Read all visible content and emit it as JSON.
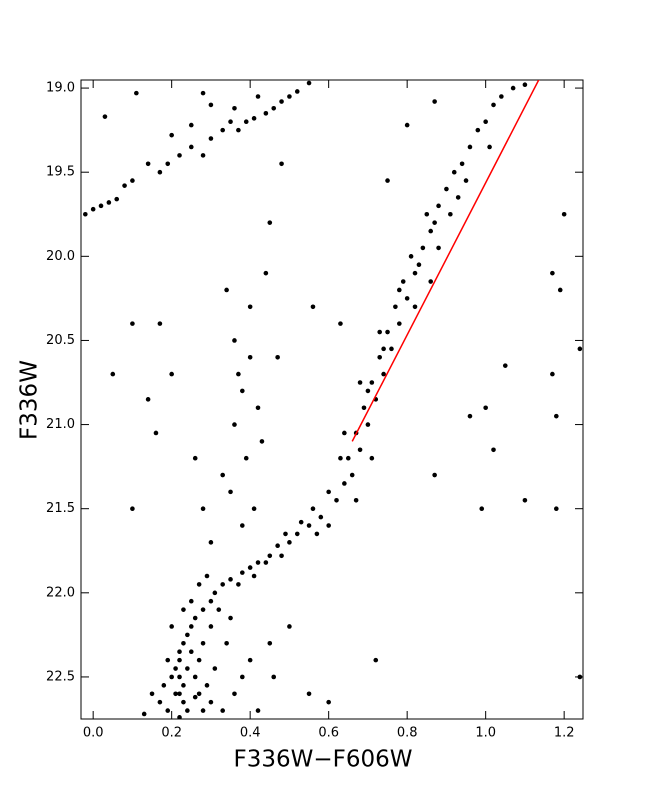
{
  "chart_data": {
    "type": "scatter",
    "x_label": "F336W−F606W",
    "y_label": "F336W",
    "xlim": [
      -0.031,
      1.248
    ],
    "ylim": [
      18.952,
      22.75
    ],
    "y_inverted": true,
    "xticks": [
      {
        "value": 0,
        "label": "0.0"
      },
      0.2,
      0.4,
      0.6,
      0.8,
      {
        "value": 1,
        "label": "1.0"
      },
      1.2
    ],
    "yticks": [
      {
        "value": 19,
        "label": "19.0"
      },
      19.5,
      {
        "value": 20,
        "label": "20.0"
      },
      20.5,
      {
        "value": 21,
        "label": "21.0"
      },
      21.5,
      {
        "value": 22,
        "label": "22.0"
      },
      22.5
    ],
    "series": [
      {
        "type": "scatter",
        "color": "#000000",
        "x": [
          -0.02,
          0.0,
          0.02,
          0.04,
          0.06,
          0.08,
          0.1,
          0.14,
          0.17,
          0.19,
          0.22,
          0.25,
          0.28,
          0.3,
          0.33,
          0.35,
          0.37,
          0.39,
          0.41,
          0.44,
          0.46,
          0.48,
          0.5,
          0.52,
          0.55,
          0.36,
          0.42,
          0.3,
          0.25,
          0.2,
          0.11,
          0.03,
          0.28,
          0.62,
          0.64,
          0.66,
          0.65,
          0.68,
          0.67,
          0.7,
          0.69,
          0.72,
          0.71,
          0.74,
          0.73,
          0.76,
          0.75,
          0.78,
          0.77,
          0.8,
          0.79,
          0.82,
          0.81,
          0.84,
          0.86,
          0.85,
          0.88,
          0.9,
          0.92,
          0.94,
          0.96,
          0.98,
          1.0,
          1.02,
          1.04,
          1.07,
          1.1,
          0.7,
          0.74,
          0.78,
          0.83,
          0.87,
          0.63,
          0.6,
          0.67,
          0.71,
          0.64,
          0.68,
          0.73,
          0.88,
          0.91,
          0.95,
          0.93,
          1.01,
          0.82,
          0.86,
          0.58,
          0.55,
          0.52,
          0.5,
          0.47,
          0.45,
          0.42,
          0.4,
          0.38,
          0.35,
          0.33,
          0.56,
          0.53,
          0.49,
          0.44,
          0.41,
          0.37,
          0.31,
          0.6,
          0.57,
          0.48,
          0.3,
          0.28,
          0.26,
          0.25,
          0.24,
          0.23,
          0.22,
          0.22,
          0.21,
          0.22,
          0.23,
          0.22,
          0.23,
          0.24,
          0.22,
          0.32,
          0.3,
          0.28,
          0.27,
          0.26,
          0.27,
          0.28,
          0.25,
          0.24,
          0.26,
          0.29,
          0.31,
          0.34,
          0.35,
          0.2,
          0.19,
          0.18,
          0.19,
          0.17,
          0.36,
          0.38,
          0.4,
          0.42,
          0.45,
          0.33,
          0.3,
          0.21,
          0.2,
          0.25,
          0.27,
          0.29,
          0.23,
          0.15,
          0.13,
          0.5,
          0.55,
          0.46,
          0.36,
          0.38,
          0.4,
          0.37,
          0.42,
          0.39,
          0.35,
          0.41,
          0.38,
          0.33,
          0.36,
          0.4,
          0.45,
          0.44,
          0.47,
          0.3,
          0.28,
          0.26,
          0.43,
          0.34,
          0.1,
          0.17,
          0.05,
          0.14,
          0.16,
          0.1,
          0.2,
          1.2,
          1.17,
          1.19,
          1.24,
          1.17,
          1.18,
          1.05,
          1.0,
          1.02,
          0.99,
          1.1,
          1.18,
          0.87,
          0.72,
          0.6,
          0.75,
          0.8,
          0.87,
          1.24,
          0.56,
          0.63,
          0.96,
          0.48
        ],
        "values": [
          19.75,
          19.72,
          19.7,
          19.68,
          19.66,
          19.58,
          19.55,
          19.45,
          19.5,
          19.45,
          19.4,
          19.35,
          19.4,
          19.3,
          19.25,
          19.2,
          19.25,
          19.2,
          19.18,
          19.15,
          19.12,
          19.08,
          19.05,
          19.02,
          18.97,
          19.12,
          19.05,
          19.1,
          19.22,
          19.28,
          19.03,
          19.17,
          19.03,
          21.45,
          21.35,
          21.3,
          21.2,
          21.15,
          21.05,
          21.0,
          20.9,
          20.85,
          20.75,
          20.7,
          20.6,
          20.55,
          20.45,
          20.4,
          20.3,
          20.25,
          20.15,
          20.1,
          20.0,
          19.95,
          19.85,
          19.75,
          19.7,
          19.6,
          19.5,
          19.45,
          19.35,
          19.25,
          19.2,
          19.1,
          19.05,
          19.0,
          18.98,
          20.8,
          20.55,
          20.2,
          20.05,
          19.8,
          21.2,
          21.4,
          21.45,
          21.2,
          21.05,
          20.75,
          20.45,
          19.95,
          19.75,
          19.55,
          19.65,
          19.35,
          20.3,
          20.15,
          21.55,
          21.6,
          21.65,
          21.7,
          21.72,
          21.78,
          21.82,
          21.85,
          21.88,
          21.92,
          21.95,
          21.5,
          21.58,
          21.65,
          21.82,
          21.9,
          21.95,
          22.0,
          21.6,
          21.65,
          21.78,
          22.05,
          22.1,
          22.15,
          22.2,
          22.25,
          22.3,
          22.35,
          22.4,
          22.45,
          22.5,
          22.55,
          22.6,
          22.65,
          22.7,
          22.74,
          22.1,
          22.2,
          22.3,
          22.4,
          22.5,
          22.6,
          22.7,
          22.35,
          22.45,
          22.62,
          22.55,
          22.45,
          22.3,
          22.15,
          22.2,
          22.4,
          22.55,
          22.7,
          22.65,
          22.6,
          22.5,
          22.4,
          22.7,
          22.3,
          22.7,
          22.65,
          22.6,
          22.5,
          22.05,
          21.95,
          21.9,
          22.1,
          22.6,
          22.72,
          22.2,
          22.6,
          22.5,
          21.0,
          20.8,
          20.6,
          20.7,
          20.9,
          21.2,
          21.4,
          21.5,
          21.6,
          21.3,
          20.5,
          20.3,
          19.8,
          20.1,
          20.6,
          21.7,
          21.5,
          21.2,
          21.1,
          20.2,
          20.4,
          20.4,
          20.7,
          20.85,
          21.05,
          21.5,
          20.7,
          19.75,
          20.1,
          20.2,
          20.55,
          20.7,
          20.95,
          20.65,
          20.9,
          21.15,
          21.5,
          21.45,
          21.5,
          21.3,
          22.4,
          22.65,
          19.55,
          19.22,
          19.08,
          22.5,
          20.3,
          20.4,
          20.95,
          19.45
        ]
      },
      {
        "type": "line",
        "color": "#ff0000",
        "x": [
          0.66,
          1.14
        ],
        "values": [
          21.1,
          18.93
        ]
      }
    ]
  }
}
